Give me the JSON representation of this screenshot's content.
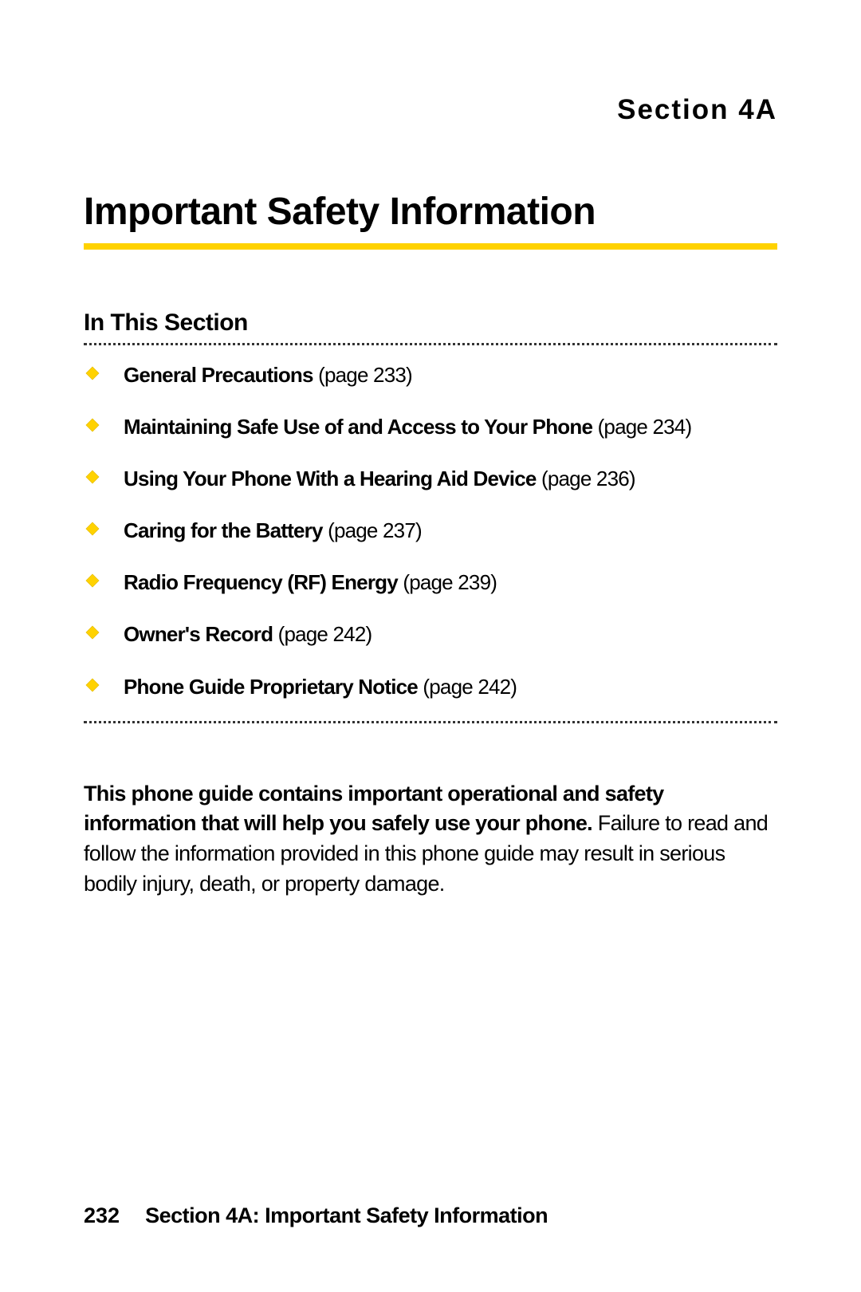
{
  "colors": {
    "accent_yellow": "#ffd200",
    "bullet_fill": "#ffd200",
    "bullet_stroke": "#e0b800",
    "text_black": "#000000",
    "dotted_line": "#333333",
    "background": "#ffffff"
  },
  "typography": {
    "section_label_size": 35,
    "heading_size": 48,
    "subsection_size": 30,
    "toc_size": 26,
    "body_size": 27,
    "footer_size": 27
  },
  "section_label": "Section 4A",
  "main_heading": "Important Safety Information",
  "subsection_heading": "In This Section",
  "toc_items": [
    {
      "title": "General Precautions",
      "page_ref": " (page 233)"
    },
    {
      "title": "Maintaining Safe Use of and Access to Your Phone",
      "page_ref": " (page 234)"
    },
    {
      "title": "Using Your Phone With a Hearing Aid Device",
      "page_ref": " (page 236)"
    },
    {
      "title": "Caring for the Battery",
      "page_ref": " (page 237)"
    },
    {
      "title": "Radio Frequency (RF) Energy",
      "page_ref": " (page 239)"
    },
    {
      "title": "Owner's Record",
      "page_ref": " (page 242)"
    },
    {
      "title": "Phone Guide Proprietary Notice",
      "page_ref": " (page 242)"
    }
  ],
  "body_bold": "This phone guide contains important operational and safety information that will help you safely use your phone.",
  "body_rest": " Failure to read and follow the information provided in this phone guide may result in serious bodily injury, death, or property damage.",
  "footer": {
    "page_number": "232",
    "title": "Section 4A: Important Safety Information"
  }
}
